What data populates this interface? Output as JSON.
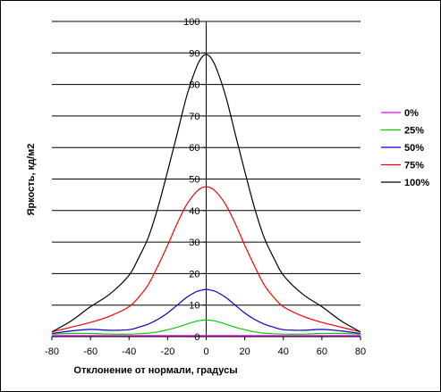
{
  "chart_data": {
    "type": "line",
    "title": "",
    "xlabel": "Отклонение от нормали, градусы",
    "ylabel": "Яркость, кд/м2",
    "xlim": [
      -80,
      80
    ],
    "ylim": [
      0,
      100
    ],
    "x_ticks": [
      -80,
      -60,
      -40,
      -20,
      0,
      20,
      40,
      60,
      80
    ],
    "y_ticks": [
      0,
      10,
      20,
      30,
      40,
      50,
      60,
      70,
      80,
      90,
      100
    ],
    "grid": "horizontal",
    "legend_position": "right",
    "x": [
      -80,
      -70,
      -60,
      -50,
      -40,
      -35,
      -30,
      -25,
      -20,
      -15,
      -10,
      -5,
      -2,
      0,
      2,
      5,
      10,
      15,
      20,
      25,
      30,
      35,
      40,
      50,
      60,
      70,
      80
    ],
    "series": [
      {
        "name": "0%",
        "color": "#ff00ff",
        "values": [
          0.3,
          0.3,
          0.3,
          0.3,
          0.3,
          0.3,
          0.3,
          0.3,
          0.3,
          0.3,
          0.3,
          0.3,
          0.3,
          0.3,
          0.3,
          0.3,
          0.3,
          0.3,
          0.3,
          0.3,
          0.3,
          0.3,
          0.3,
          0.3,
          0.3,
          0.3,
          0.3
        ]
      },
      {
        "name": "25%",
        "color": "#00cc00",
        "values": [
          0.8,
          1.0,
          1.0,
          0.8,
          0.8,
          0.9,
          1.1,
          1.5,
          2.2,
          3.0,
          4.0,
          4.9,
          5.2,
          5.3,
          5.2,
          4.9,
          4.0,
          3.0,
          2.2,
          1.5,
          1.1,
          0.9,
          0.8,
          0.8,
          1.0,
          1.0,
          0.8
        ]
      },
      {
        "name": "50%",
        "color": "#0000cc",
        "values": [
          1.0,
          1.8,
          2.3,
          2.0,
          2.2,
          3.0,
          4.0,
          5.5,
          7.5,
          10.0,
          12.5,
          14.3,
          14.8,
          15.0,
          14.8,
          14.3,
          12.5,
          10.0,
          7.5,
          5.5,
          4.0,
          3.0,
          2.2,
          2.0,
          2.3,
          1.8,
          1.0
        ]
      },
      {
        "name": "75%",
        "color": "#ff0000",
        "values": [
          1.5,
          3.0,
          4.5,
          6.5,
          9.5,
          12.5,
          16.5,
          22.5,
          29.0,
          36.0,
          42.0,
          46.0,
          47.3,
          47.5,
          47.3,
          46.0,
          42.0,
          36.0,
          29.0,
          22.5,
          16.5,
          12.5,
          9.5,
          6.5,
          4.5,
          3.0,
          1.5
        ]
      },
      {
        "name": "100%",
        "color": "#000000",
        "values": [
          1.5,
          5.0,
          9.5,
          13.5,
          19.5,
          25.0,
          31.5,
          41.0,
          52.5,
          64.5,
          76.5,
          85.5,
          88.8,
          89.5,
          88.8,
          85.5,
          76.5,
          64.5,
          52.5,
          41.0,
          31.5,
          25.0,
          19.5,
          13.5,
          9.5,
          5.0,
          1.5
        ]
      }
    ]
  }
}
